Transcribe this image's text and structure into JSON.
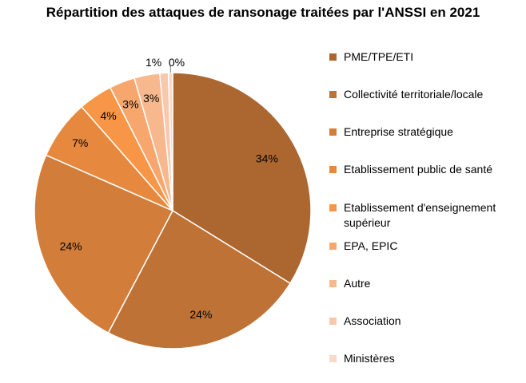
{
  "chart_data": {
    "type": "pie",
    "title": "Répartition des attaques de ransonage traitées par l'ANSSI en  2021",
    "legend_position": "right",
    "start_angle_deg": 0,
    "direction": "clockwise",
    "slices": [
      {
        "label": "PME/TPE/ETI",
        "value": 34,
        "display": "34%",
        "color": "#ac6731"
      },
      {
        "label": "Collectivité territoriale/locale",
        "value": 24,
        "display": "24%",
        "color": "#bf7235"
      },
      {
        "label": "Entreprise stratégique",
        "value": 24,
        "display": "24%",
        "color": "#d27d3a"
      },
      {
        "label": "Etablissement public de santé",
        "value": 7,
        "display": "7%",
        "color": "#e6893e"
      },
      {
        "label": "Etablissement d'enseignement supérieur",
        "value": 4,
        "display": "4%",
        "color": "#f79646"
      },
      {
        "label": "EPA, EPIC",
        "value": 3,
        "display": "3%",
        "color": "#f7a76e"
      },
      {
        "label": "Autre",
        "value": 3,
        "display": "3%",
        "color": "#f8b88d"
      },
      {
        "label": "Association",
        "value": 1,
        "display": "1%",
        "color": "#f9c8ab"
      },
      {
        "label": "Ministères",
        "value": 0.5,
        "display": "0%",
        "color": "#fad9c8"
      }
    ]
  }
}
